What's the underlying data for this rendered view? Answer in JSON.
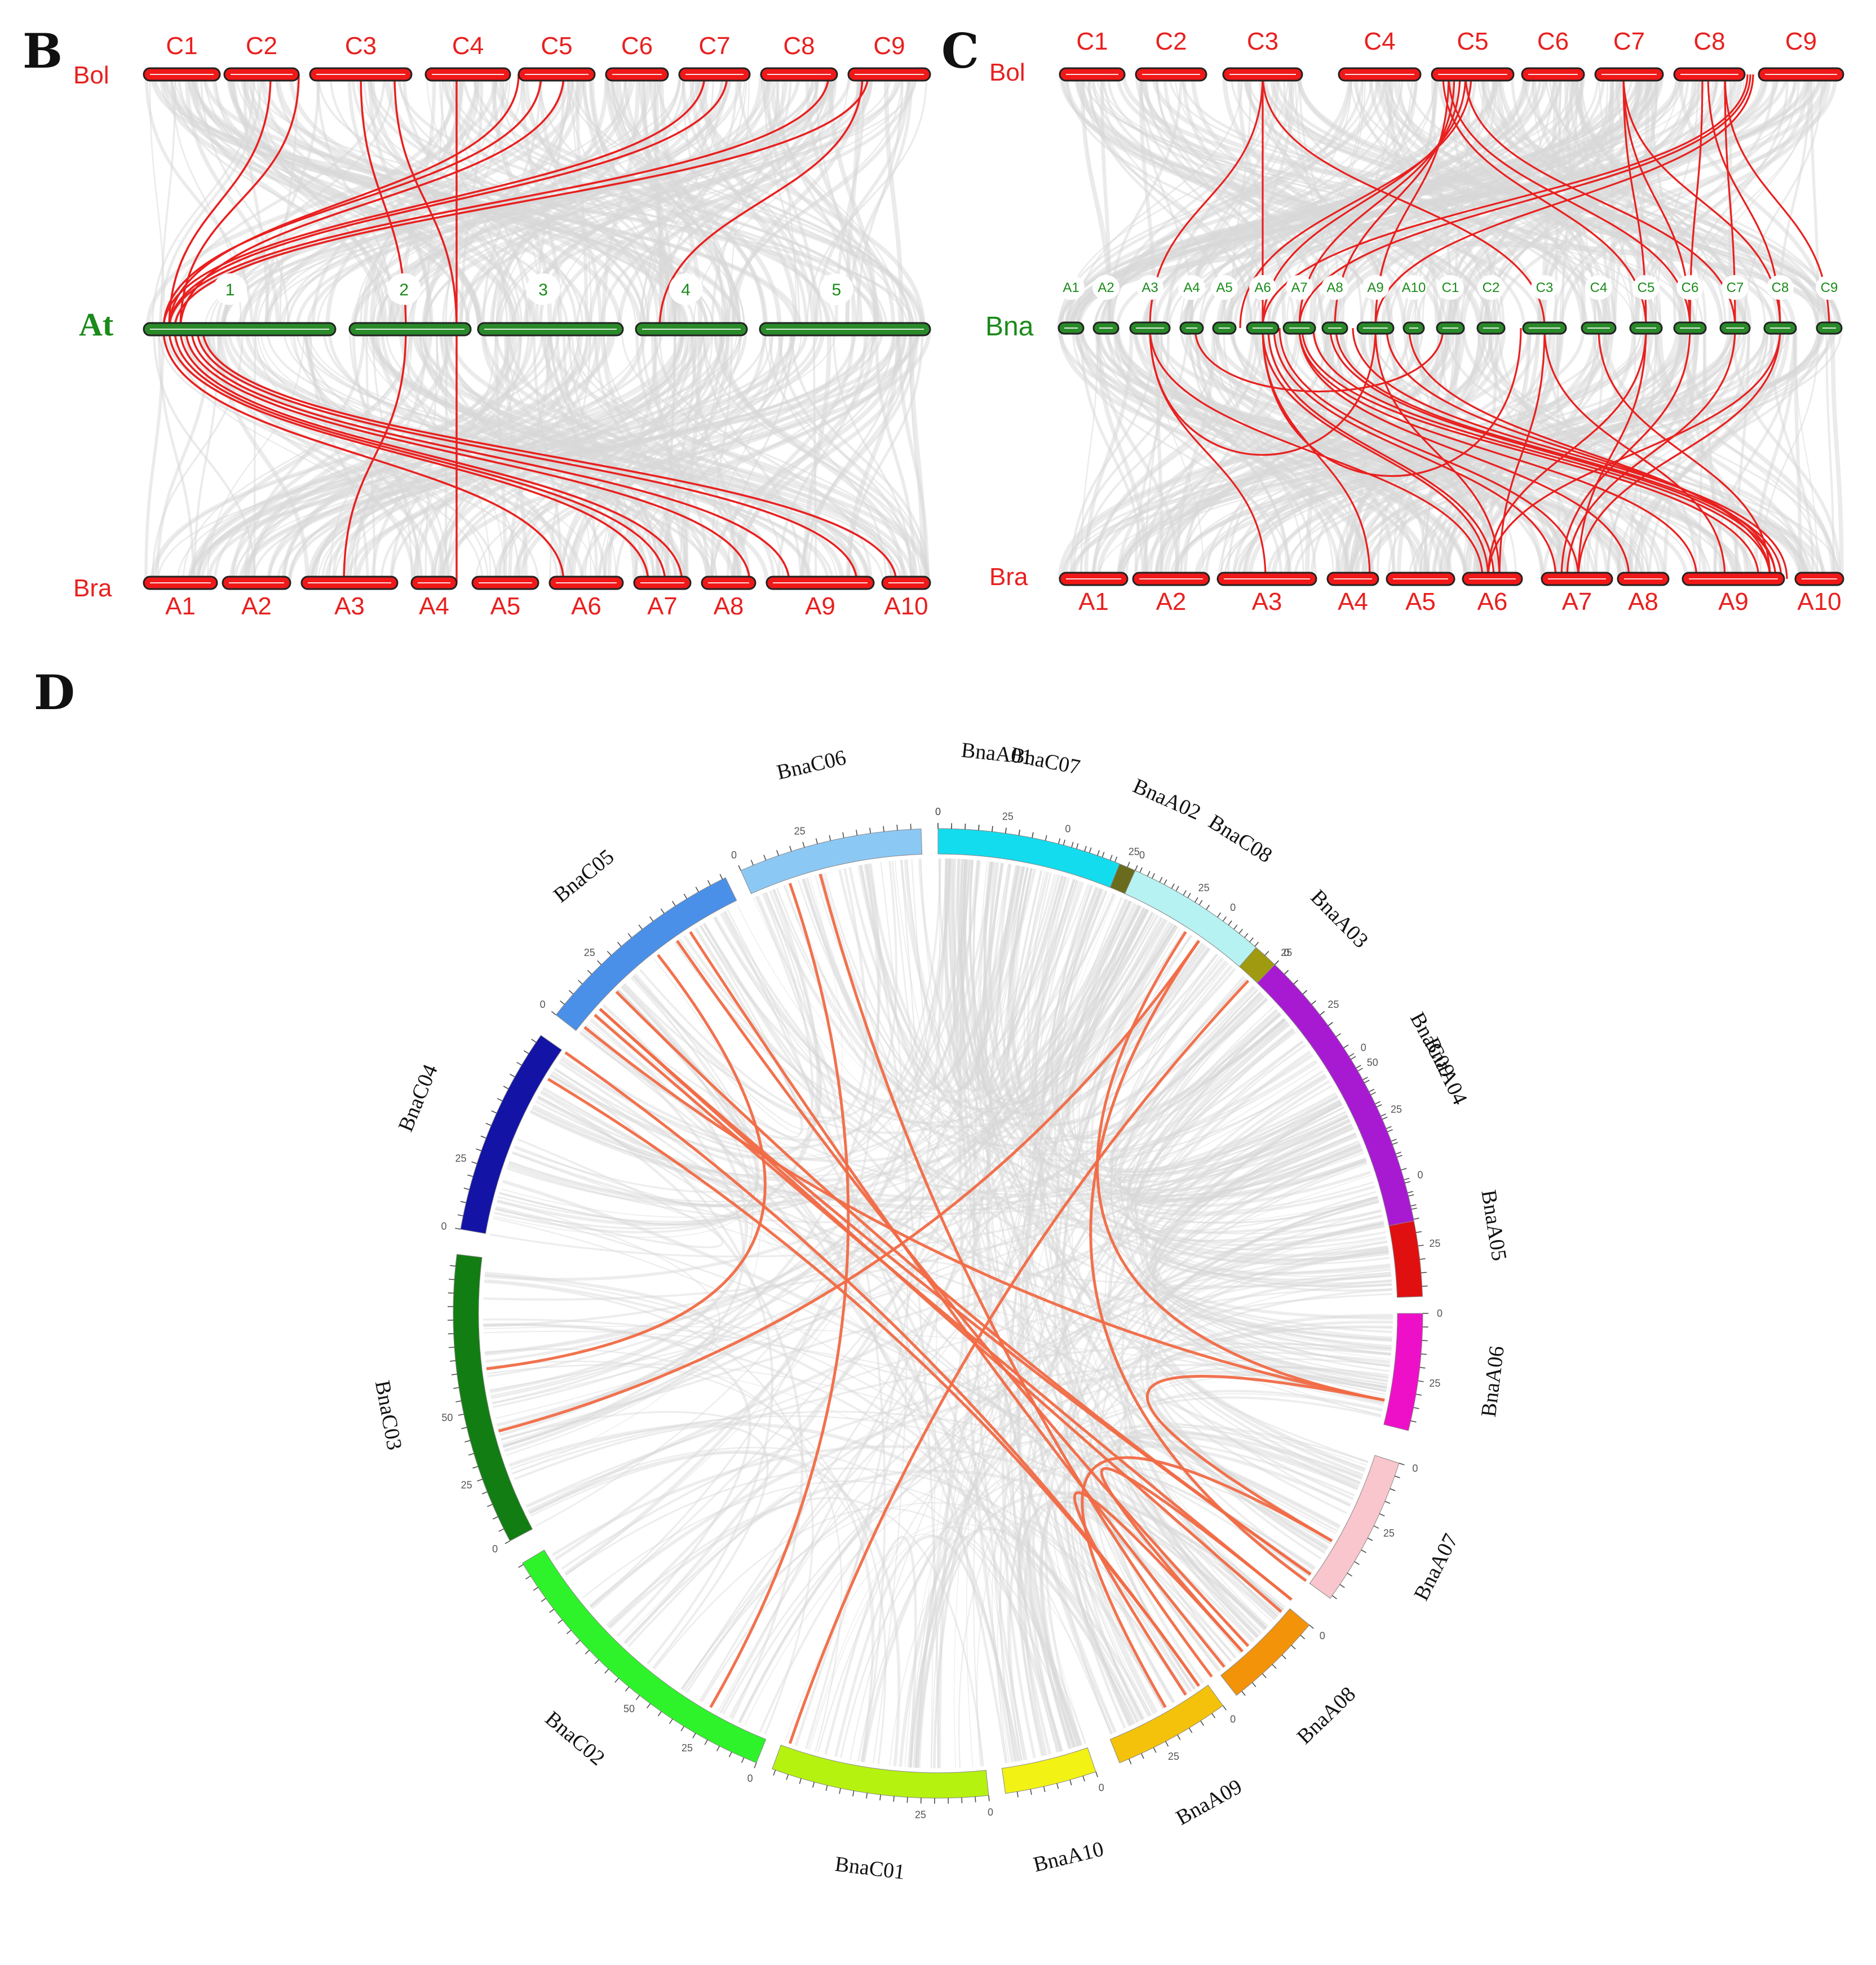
{
  "panels": {
    "B": {
      "letter": "B",
      "top_label": "Bol",
      "mid_label": "At",
      "bottom_label": "Bra",
      "top_chroms": [
        "C1",
        "C2",
        "C3",
        "C4",
        "C5",
        "C6",
        "C7",
        "C8",
        "C9"
      ],
      "mid_chroms": [
        "1",
        "2",
        "3",
        "4",
        "5"
      ],
      "bottom_chroms": [
        "A1",
        "A2",
        "A3",
        "A4",
        "A5",
        "A6",
        "A7",
        "A8",
        "A9",
        "A10"
      ]
    },
    "C": {
      "letter": "C",
      "top_label": "Bol",
      "mid_label": "Bna",
      "bottom_label": "Bra",
      "top_chroms": [
        "C1",
        "C2",
        "C3",
        "C4",
        "C5",
        "C6",
        "C7",
        "C8",
        "C9"
      ],
      "mid_chroms": [
        "A1",
        "A2",
        "A3",
        "A4",
        "A5",
        "A6",
        "A7",
        "A8",
        "A9",
        "A10",
        "C1",
        "C2",
        "C3",
        "C4",
        "C5",
        "C6",
        "C7",
        "C8",
        "C9"
      ],
      "bottom_chroms": [
        "A1",
        "A2",
        "A3",
        "A4",
        "A5",
        "A6",
        "A7",
        "A8",
        "A9",
        "A10"
      ]
    },
    "D": {
      "letter": "D",
      "chromosomes": [
        {
          "name": "BnaA01",
          "color": "#a0641a"
        },
        {
          "name": "BnaA02",
          "color": "#6b6b1e"
        },
        {
          "name": "BnaA03",
          "color": "#a09a10"
        },
        {
          "name": "BnaA04",
          "color": "#d81818"
        },
        {
          "name": "BnaA05",
          "color": "#e01010"
        },
        {
          "name": "BnaA06",
          "color": "#ee10c8"
        },
        {
          "name": "BnaA07",
          "color": "#f8c6cc"
        },
        {
          "name": "BnaA08",
          "color": "#f3930a"
        },
        {
          "name": "BnaA09",
          "color": "#f4c20a"
        },
        {
          "name": "BnaA10",
          "color": "#f2f214"
        },
        {
          "name": "BnaC01",
          "color": "#b6f20f"
        },
        {
          "name": "BnaC02",
          "color": "#2ef32a"
        },
        {
          "name": "BnaC03",
          "color": "#127d12"
        },
        {
          "name": "BnaC04",
          "color": "#1313a6"
        },
        {
          "name": "BnaC05",
          "color": "#4a90e8"
        },
        {
          "name": "BnaC06",
          "color": "#8cc8f4"
        },
        {
          "name": "BnaC07",
          "color": "#13dcee"
        },
        {
          "name": "BnaC08",
          "color": "#b6f2f2"
        },
        {
          "name": "BnaC09",
          "color": "#a81ad2"
        }
      ],
      "tick_labels": [
        "0",
        "25",
        "50"
      ]
    }
  },
  "colors": {
    "synteny_gray": "#d8d8d8",
    "highlight_red": "#e8201f",
    "circos_link": "#f06a45",
    "bol_bar": "#f01818",
    "at_bar": "#2a8a2a",
    "green_text": "#1a8a1a"
  }
}
